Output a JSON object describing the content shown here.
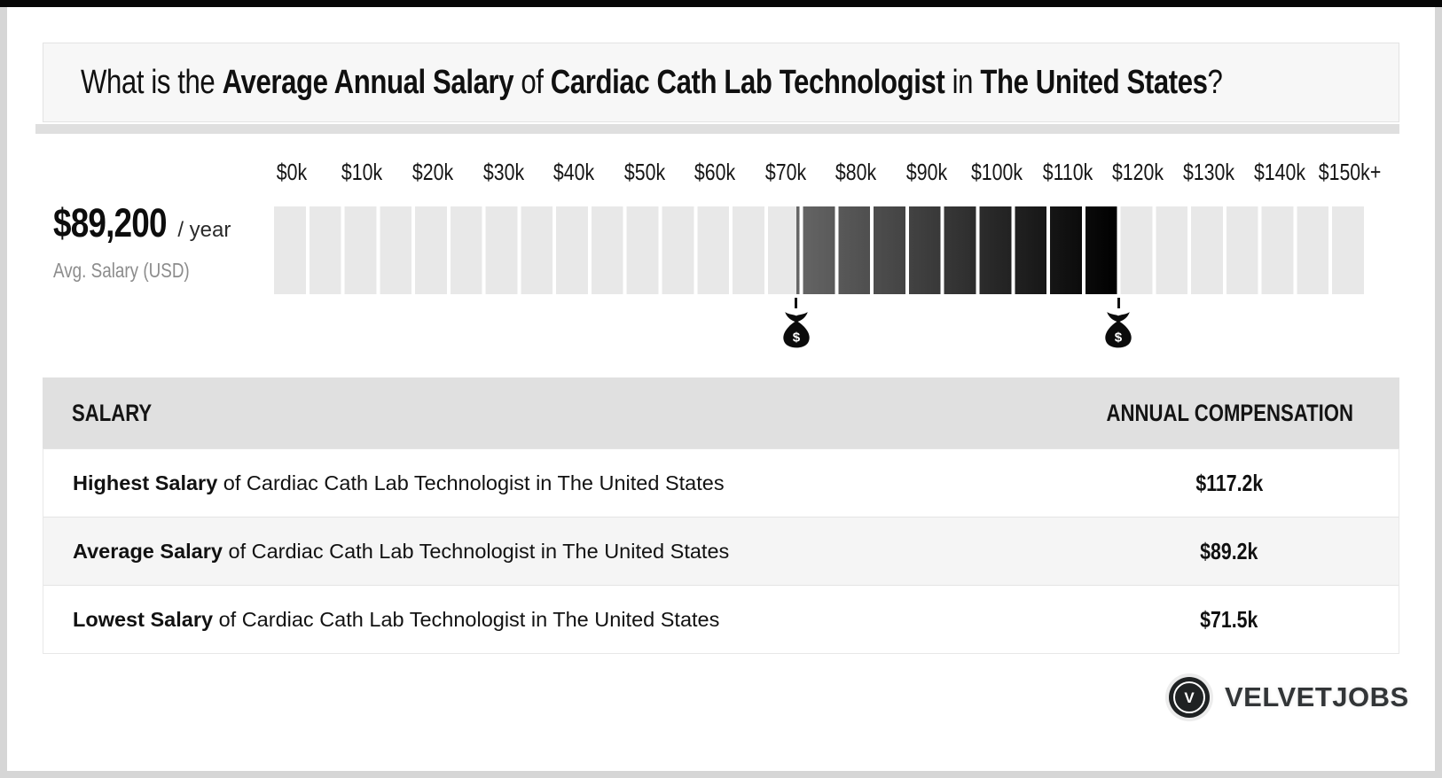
{
  "title": {
    "part1": "What is the ",
    "part2": "Average Annual Salary",
    "part3": " of ",
    "part4": "Cardiac Cath Lab Technologist",
    "part5": " in ",
    "part6": "The United States",
    "part7": "?"
  },
  "summary": {
    "amount": "$89,200",
    "per": " / year",
    "caption": "Avg. Salary (USD)"
  },
  "chart_data": {
    "type": "bar",
    "subtype": "salary-range-indicator",
    "title": "Average Annual Salary of Cardiac Cath Lab Technologist in The United States",
    "x_axis": {
      "min": 0,
      "max": 155,
      "tick_interval": 10,
      "unit": "USD thousands per year"
    },
    "ticks": [
      {
        "label": "$0k",
        "value": 0
      },
      {
        "label": "$10k",
        "value": 10
      },
      {
        "label": "$20k",
        "value": 20
      },
      {
        "label": "$30k",
        "value": 30
      },
      {
        "label": "$40k",
        "value": 40
      },
      {
        "label": "$50k",
        "value": 50
      },
      {
        "label": "$60k",
        "value": 60
      },
      {
        "label": "$70k",
        "value": 70
      },
      {
        "label": "$80k",
        "value": 80
      },
      {
        "label": "$90k",
        "value": 90
      },
      {
        "label": "$100k",
        "value": 100
      },
      {
        "label": "$110k",
        "value": 110
      },
      {
        "label": "$120k",
        "value": 120
      },
      {
        "label": "$130k",
        "value": 130
      },
      {
        "label": "$140k",
        "value": 140
      },
      {
        "label": "$150k+",
        "value": 150
      }
    ],
    "segment_step": 5,
    "segment_count": 31,
    "lowest_k": 71.5,
    "average_k": 89.2,
    "highest_k": 117.2,
    "average_salary_display": "$89,200",
    "track_color": "#e8e8e8",
    "fill_gradient": [
      "#666666",
      "#000000"
    ],
    "marker_icon": "money-bag",
    "markers": [
      "lowest",
      "highest"
    ],
    "money_bag_symbol": "$"
  },
  "table": {
    "col1": "SALARY",
    "col2": "ANNUAL COMPENSATION",
    "rows": [
      {
        "bold": "Highest Salary",
        "rest": " of Cardiac Cath Lab Technologist in The United States",
        "value": "$117.2k"
      },
      {
        "bold": "Average Salary",
        "rest": " of Cardiac Cath Lab Technologist in The United States",
        "value": "$89.2k"
      },
      {
        "bold": "Lowest Salary",
        "rest": " of Cardiac Cath Lab Technologist in The United States",
        "value": "$71.5k"
      }
    ]
  },
  "footer": {
    "brand": "VELVETJOBS",
    "badge_letter": "V"
  },
  "colors": {
    "top_bar": "#070707",
    "page_border": "#d6d6d6",
    "title_box_bg": "#f7f7f7",
    "title_strip": "#dfdfdf",
    "table_header_bg": "#e0e0e0",
    "row_alt_bg": "#f5f5f5",
    "muted_text": "#8c8c8c",
    "brand_text": "#323537"
  }
}
